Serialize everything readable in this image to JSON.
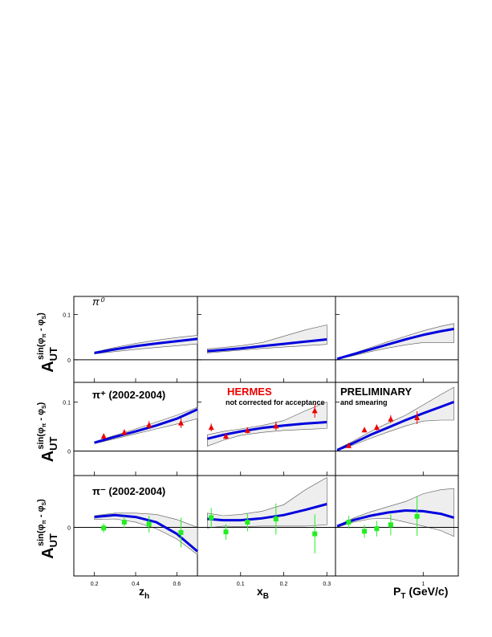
{
  "figure": {
    "ylabel_main": "A",
    "ylabel_sub": "UT",
    "ylabel_sup": "sin(φ",
    "ylabel_sup_pi": "π",
    "ylabel_sup_mid": " - φ",
    "ylabel_sup_s": "S",
    "ylabel_sup_end": ")",
    "xlabels": [
      "z",
      "x",
      "P"
    ],
    "xlabel_subs": [
      "h",
      "B",
      "T"
    ],
    "xlabel_suffix": [
      "",
      "",
      " (GeV/c)"
    ],
    "rows": [
      {
        "label": "π⁰",
        "ytick_label": "0.1",
        "zero_label": "0"
      },
      {
        "label": "π⁺ (2002-2004)",
        "ytick_label": "0.1",
        "zero_label": "0"
      },
      {
        "label": "π⁻ (2002-2004)",
        "ytick_label": "0",
        "zero_label": ""
      }
    ],
    "annotations": {
      "hermes": "HERMES",
      "note1": "not corrected for acceptance",
      "preliminary": "PRELIMINARY",
      "note2": "and smearing"
    },
    "colors": {
      "curve": "#0000dd",
      "pi_plus": "#ee0000",
      "pi_minus": "#22ee22",
      "band": "#eeeeee",
      "band_edge": "#555555",
      "hermes": "#ee0000"
    }
  },
  "chart_data": [
    {
      "type": "line",
      "id": "pi0-zh",
      "row": 0,
      "col": 0,
      "xlim": [
        0.1,
        0.7
      ],
      "ylim": [
        -0.05,
        0.14
      ],
      "xticks": [
        0.2,
        0.4,
        0.6
      ],
      "yticks": [
        0,
        0.1
      ],
      "curve": {
        "x": [
          0.2,
          0.3,
          0.4,
          0.5,
          0.6,
          0.7
        ],
        "y": [
          0.015,
          0.023,
          0.03,
          0.036,
          0.041,
          0.046
        ]
      },
      "band": {
        "x": [
          0.2,
          0.3,
          0.4,
          0.5,
          0.6,
          0.7
        ],
        "upper": [
          0.017,
          0.027,
          0.036,
          0.043,
          0.049,
          0.054
        ],
        "lower": [
          0.013,
          0.018,
          0.023,
          0.027,
          0.031,
          0.035
        ]
      }
    },
    {
      "type": "line",
      "id": "pi0-xB",
      "row": 0,
      "col": 1,
      "xlim": [
        0,
        0.32
      ],
      "ylim": [
        -0.05,
        0.14
      ],
      "xticks": [
        0.1,
        0.2,
        0.3
      ],
      "yticks": [
        0,
        0.1
      ],
      "curve": {
        "x": [
          0.023,
          0.06,
          0.1,
          0.15,
          0.2,
          0.25,
          0.3
        ],
        "y": [
          0.019,
          0.022,
          0.025,
          0.03,
          0.035,
          0.04,
          0.045
        ]
      },
      "band": {
        "x": [
          0.023,
          0.06,
          0.1,
          0.15,
          0.2,
          0.25,
          0.3
        ],
        "upper": [
          0.024,
          0.027,
          0.031,
          0.038,
          0.052,
          0.066,
          0.077
        ],
        "lower": [
          0.015,
          0.018,
          0.021,
          0.025,
          0.028,
          0.031,
          0.034
        ]
      }
    },
    {
      "type": "line",
      "id": "pi0-pT",
      "row": 0,
      "col": 2,
      "xlim": [
        0,
        1.4
      ],
      "ylim": [
        -0.05,
        0.14
      ],
      "xticks": [
        1
      ],
      "yticks": [
        0,
        0.1
      ],
      "curve": {
        "x": [
          0.02,
          0.2,
          0.4,
          0.6,
          0.8,
          1.0,
          1.2,
          1.35
        ],
        "y": [
          0.002,
          0.012,
          0.023,
          0.034,
          0.045,
          0.055,
          0.063,
          0.068
        ]
      },
      "band": {
        "x": [
          0.02,
          0.2,
          0.4,
          0.6,
          0.8,
          1.0,
          1.2,
          1.35
        ],
        "upper": [
          0.003,
          0.014,
          0.027,
          0.04,
          0.052,
          0.064,
          0.074,
          0.08
        ],
        "lower": [
          0.001,
          0.009,
          0.018,
          0.026,
          0.033,
          0.038,
          0.038,
          0.038
        ]
      }
    },
    {
      "type": "line",
      "id": "piplus-zh",
      "row": 1,
      "col": 0,
      "xlim": [
        0.1,
        0.7
      ],
      "ylim": [
        -0.05,
        0.14
      ],
      "xticks": [
        0.2,
        0.4,
        0.6
      ],
      "yticks": [
        0,
        0.1
      ],
      "curve": {
        "x": [
          0.2,
          0.3,
          0.4,
          0.5,
          0.6,
          0.7
        ],
        "y": [
          0.017,
          0.029,
          0.04,
          0.052,
          0.066,
          0.085
        ]
      },
      "band": {
        "x": [
          0.2,
          0.3,
          0.4,
          0.5,
          0.6,
          0.7
        ],
        "upper": [
          0.019,
          0.032,
          0.045,
          0.059,
          0.073,
          0.089
        ],
        "lower": [
          0.015,
          0.025,
          0.035,
          0.045,
          0.055,
          0.066
        ]
      },
      "points": {
        "x": [
          0.245,
          0.345,
          0.465,
          0.62
        ],
        "y": [
          0.03,
          0.038,
          0.053,
          0.057
        ],
        "err": [
          0.005,
          0.006,
          0.008,
          0.01
        ]
      }
    },
    {
      "type": "line",
      "id": "piplus-xB",
      "row": 1,
      "col": 1,
      "xlim": [
        0,
        0.32
      ],
      "ylim": [
        -0.05,
        0.14
      ],
      "xticks": [
        0.1,
        0.2,
        0.3
      ],
      "yticks": [
        0,
        0.1
      ],
      "curve": {
        "x": [
          0.023,
          0.06,
          0.1,
          0.15,
          0.2,
          0.25,
          0.3
        ],
        "y": [
          0.025,
          0.033,
          0.04,
          0.047,
          0.052,
          0.056,
          0.059
        ]
      },
      "band": {
        "x": [
          0.023,
          0.06,
          0.1,
          0.15,
          0.2,
          0.25,
          0.3
        ],
        "upper": [
          0.033,
          0.04,
          0.045,
          0.052,
          0.062,
          0.082,
          0.1
        ],
        "lower": [
          0.01,
          0.022,
          0.032,
          0.038,
          0.042,
          0.044,
          0.046
        ]
      },
      "points": {
        "x": [
          0.032,
          0.066,
          0.116,
          0.182,
          0.272
        ],
        "y": [
          0.048,
          0.03,
          0.042,
          0.051,
          0.082
        ],
        "err": [
          0.008,
          0.006,
          0.006,
          0.009,
          0.014
        ]
      }
    },
    {
      "type": "line",
      "id": "piplus-pT",
      "row": 1,
      "col": 2,
      "xlim": [
        0,
        1.4
      ],
      "ylim": [
        -0.05,
        0.14
      ],
      "xticks": [
        1
      ],
      "yticks": [
        0,
        0.1
      ],
      "curve": {
        "x": [
          0.02,
          0.2,
          0.4,
          0.6,
          0.8,
          1.0,
          1.2,
          1.35
        ],
        "y": [
          0.002,
          0.016,
          0.033,
          0.048,
          0.063,
          0.077,
          0.09,
          0.1
        ]
      },
      "band": {
        "x": [
          0.02,
          0.2,
          0.4,
          0.6,
          0.8,
          1.0,
          1.2,
          1.35
        ],
        "upper": [
          0.004,
          0.02,
          0.04,
          0.057,
          0.073,
          0.094,
          0.115,
          0.13
        ],
        "lower": [
          0.001,
          0.012,
          0.026,
          0.039,
          0.051,
          0.061,
          0.063,
          0.063
        ]
      },
      "points": {
        "x": [
          0.15,
          0.33,
          0.47,
          0.63,
          0.93
        ],
        "y": [
          0.011,
          0.043,
          0.048,
          0.065,
          0.068
        ],
        "err": [
          0.005,
          0.005,
          0.006,
          0.008,
          0.013
        ]
      }
    },
    {
      "type": "line",
      "id": "piminus-zh",
      "row": 2,
      "col": 0,
      "xlim": [
        0.1,
        0.7
      ],
      "ylim": [
        -0.075,
        0.08
      ],
      "xticks": [
        0.2,
        0.4,
        0.6
      ],
      "yticks": [
        0
      ],
      "curve": {
        "x": [
          0.2,
          0.3,
          0.4,
          0.5,
          0.6,
          0.7
        ],
        "y": [
          0.016,
          0.019,
          0.016,
          0.008,
          -0.01,
          -0.037
        ]
      },
      "band": {
        "x": [
          0.2,
          0.3,
          0.4,
          0.5,
          0.6,
          0.7
        ],
        "upper": [
          0.018,
          0.022,
          0.022,
          0.02,
          0.012,
          0.0
        ],
        "lower": [
          0.012,
          0.013,
          0.008,
          -0.002,
          -0.018,
          -0.042
        ]
      },
      "points": {
        "x": [
          0.245,
          0.345,
          0.465,
          0.62
        ],
        "y": [
          -0.001,
          0.008,
          0.005,
          -0.008
        ],
        "err": [
          0.007,
          0.009,
          0.013,
          0.023
        ]
      }
    },
    {
      "type": "line",
      "id": "piminus-xB",
      "row": 2,
      "col": 1,
      "xlim": [
        0,
        0.32
      ],
      "ylim": [
        -0.075,
        0.08
      ],
      "xticks": [
        0.1,
        0.2,
        0.3
      ],
      "yticks": [
        0
      ],
      "curve": {
        "x": [
          0.023,
          0.06,
          0.1,
          0.15,
          0.2,
          0.25,
          0.3
        ],
        "y": [
          0.013,
          0.011,
          0.011,
          0.014,
          0.019,
          0.027,
          0.036
        ]
      },
      "band": {
        "x": [
          0.023,
          0.06,
          0.1,
          0.15,
          0.2,
          0.25,
          0.3
        ],
        "upper": [
          0.022,
          0.018,
          0.02,
          0.025,
          0.035,
          0.058,
          0.077
        ],
        "lower": [
          -0.001,
          0.002,
          0.001,
          0.002,
          0.002,
          0.002,
          0.004
        ]
      },
      "points": {
        "x": [
          0.032,
          0.066,
          0.116,
          0.182,
          0.272
        ],
        "y": [
          0.015,
          -0.007,
          0.008,
          0.013,
          -0.01
        ],
        "err": [
          0.015,
          0.012,
          0.014,
          0.024,
          0.03
        ]
      }
    },
    {
      "type": "line",
      "id": "piminus-pT",
      "row": 2,
      "col": 2,
      "xlim": [
        0,
        1.4
      ],
      "ylim": [
        -0.075,
        0.08
      ],
      "xticks": [
        1
      ],
      "yticks": [
        0
      ],
      "curve": {
        "x": [
          0.02,
          0.2,
          0.4,
          0.6,
          0.8,
          1.0,
          1.2,
          1.35
        ],
        "y": [
          0.002,
          0.011,
          0.018,
          0.023,
          0.026,
          0.025,
          0.021,
          0.015
        ]
      },
      "band": {
        "x": [
          0.02,
          0.2,
          0.4,
          0.6,
          0.8,
          1.0,
          1.2,
          1.35
        ],
        "upper": [
          0.003,
          0.014,
          0.024,
          0.032,
          0.04,
          0.052,
          0.058,
          0.06
        ],
        "lower": [
          0.0,
          0.008,
          0.013,
          0.014,
          0.008,
          0.002,
          -0.005,
          -0.014
        ]
      },
      "points": {
        "x": [
          0.15,
          0.33,
          0.47,
          0.63,
          0.93
        ],
        "y": [
          0.008,
          -0.006,
          -0.002,
          0.004,
          0.017
        ],
        "err": [
          0.01,
          0.01,
          0.012,
          0.016,
          0.03
        ]
      }
    }
  ]
}
